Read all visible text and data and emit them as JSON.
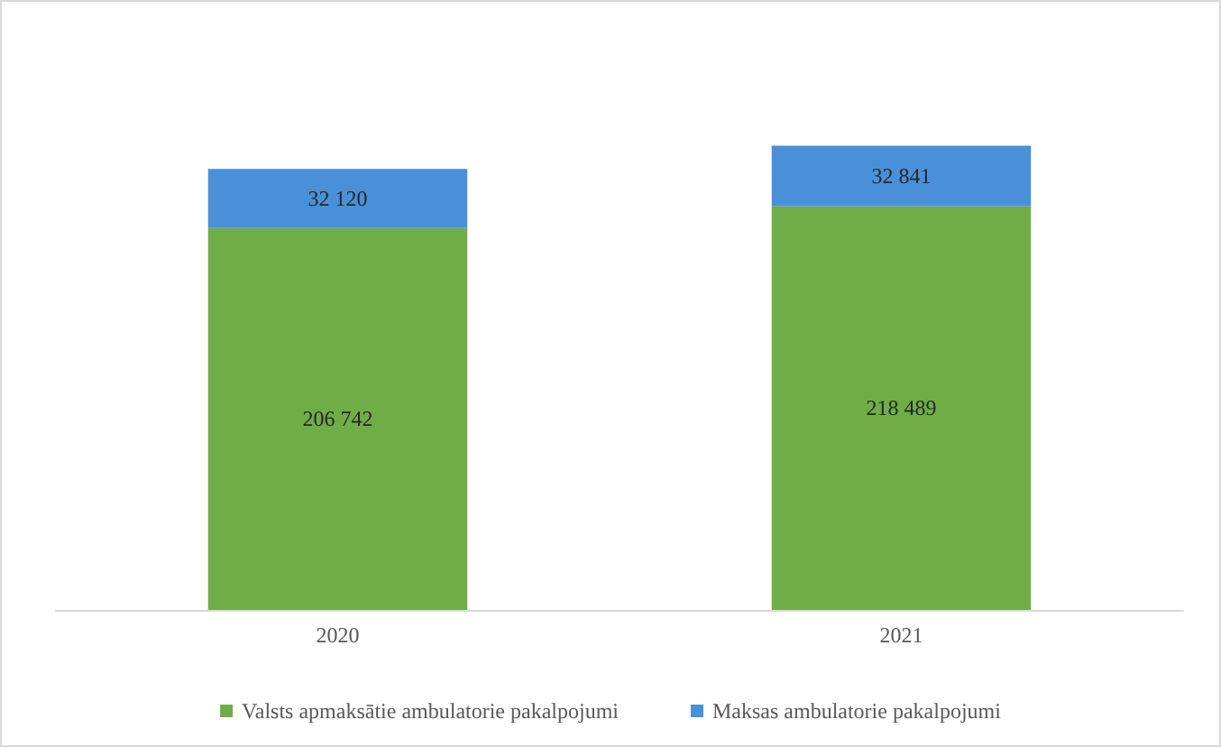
{
  "chart_data": {
    "type": "bar",
    "stacked": true,
    "categories": [
      "2020",
      "2021"
    ],
    "series": [
      {
        "name": "Valsts apmaksātie ambulatorie pakalpojumi",
        "color": "#70ad47",
        "values": [
          206742,
          218489
        ],
        "value_labels": [
          "206 742",
          "218 489"
        ]
      },
      {
        "name": "Maksas ambulatorie pakalpojumi",
        "color": "#4a90d9",
        "values": [
          32120,
          32841
        ],
        "value_labels": [
          "32 120",
          "32 841"
        ]
      }
    ],
    "legend": "bottom"
  }
}
